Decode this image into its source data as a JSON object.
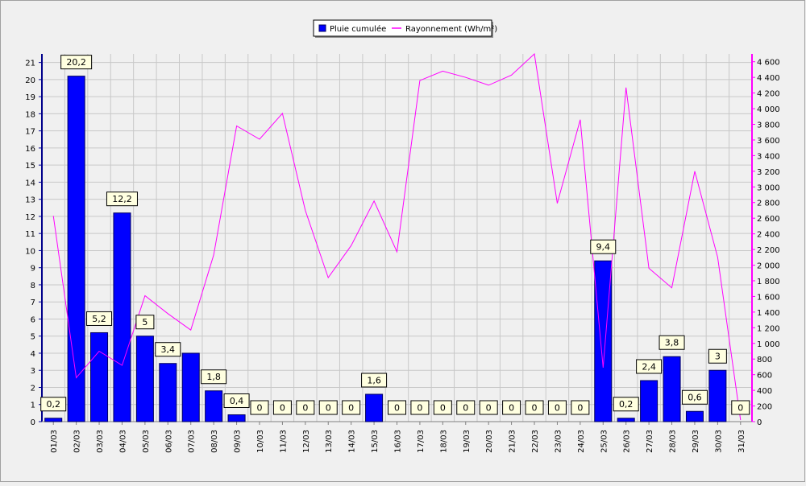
{
  "chart_data": {
    "type": "bar",
    "categories": [
      "01/03",
      "02/03",
      "03/03",
      "04/03",
      "05/03",
      "06/03",
      "07/03",
      "08/03",
      "09/03",
      "10/03",
      "11/03",
      "12/03",
      "13/03",
      "14/03",
      "15/03",
      "16/03",
      "17/03",
      "18/03",
      "19/03",
      "20/03",
      "21/03",
      "22/03",
      "23/03",
      "24/03",
      "25/03",
      "26/03",
      "27/03",
      "28/03",
      "29/03",
      "30/03",
      "31/03"
    ],
    "series": [
      {
        "name": "Pluie cumulée",
        "type": "bar",
        "axis": "left",
        "color": "#0000ff",
        "values": [
          0.2,
          20.2,
          5.2,
          12.2,
          5,
          3.4,
          4,
          1.8,
          0.4,
          0,
          0,
          0,
          0,
          0,
          1.6,
          0,
          0,
          0,
          0,
          0,
          0,
          0,
          0,
          0,
          9.4,
          0.2,
          2.4,
          3.8,
          0.6,
          3,
          0
        ],
        "labels": [
          "0,2",
          "20,2",
          "5,2",
          "12,2",
          "5",
          "3,4",
          null,
          "1,8",
          "0,4",
          "0",
          "0",
          "0",
          "0",
          "0",
          "1,6",
          "0",
          "0",
          "0",
          "0",
          "0",
          "0",
          "0",
          "0",
          "0",
          "9,4",
          "0,2",
          "2,4",
          "3,8",
          "0,6",
          "3",
          "0"
        ]
      },
      {
        "name": "Rayonnement (Wh/m²)",
        "type": "line",
        "axis": "right",
        "color": "#ff00ff",
        "values": [
          2630,
          560,
          900,
          720,
          1610,
          1380,
          1170,
          2130,
          3780,
          3610,
          3940,
          2700,
          1840,
          2250,
          2820,
          2170,
          4360,
          4480,
          4400,
          4300,
          4430,
          4700,
          2790,
          3860,
          690,
          4270,
          1960,
          1710,
          3200,
          2100,
          20
        ]
      }
    ],
    "ylim_left": [
      0,
      21.5
    ],
    "yticks_left": [
      0,
      1,
      2,
      3,
      4,
      5,
      6,
      7,
      8,
      9,
      10,
      11,
      12,
      13,
      14,
      15,
      16,
      17,
      18,
      19,
      20,
      21
    ],
    "ylim_right": [
      0,
      4700
    ],
    "yticks_right": [
      0,
      200,
      400,
      600,
      800,
      1000,
      1200,
      1400,
      1600,
      1800,
      2000,
      2200,
      2400,
      2600,
      2800,
      3000,
      3200,
      3400,
      3600,
      3800,
      4000,
      4200,
      4400,
      4600
    ],
    "ytick_labels_right": [
      "0",
      "200",
      "400",
      "600",
      "800",
      "1 000",
      "1 200",
      "1 400",
      "1 600",
      "1 800",
      "2 000",
      "2 200",
      "2 400",
      "2 600",
      "2 800",
      "3 000",
      "3 200",
      "3 400",
      "3 600",
      "3 800",
      "4 000",
      "4 200",
      "4 400",
      "4 600"
    ],
    "legend_position": "top-center",
    "grid": true,
    "colors": {
      "background": "#f0f0f0",
      "grid": "#c8c8c8",
      "left_axis": "#00008b",
      "right_axis": "#ff00ff",
      "label_box_fill": "#ffffe0"
    }
  }
}
